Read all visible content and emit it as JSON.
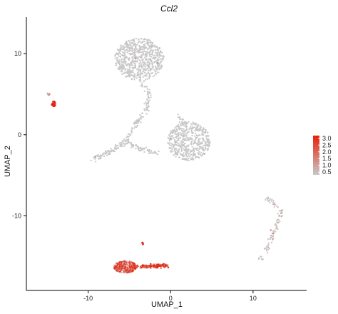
{
  "chart_data": {
    "type": "scatter",
    "title": "Ccl2",
    "xlabel": "UMAP_1",
    "ylabel": "UMAP_2",
    "xlim": [
      -17.5,
      16.5
    ],
    "ylim": [
      -19.2,
      14.5
    ],
    "x_ticks": [
      -10,
      0,
      10
    ],
    "y_ticks": [
      -10,
      0,
      10
    ],
    "grid": false,
    "legend_position": "right",
    "color_scale": {
      "low_color": "#c8c8c8",
      "high_color": "#e8200a",
      "min": 0.3,
      "max": 3.2,
      "ticks": [
        "3.0",
        "2.5",
        "2.0",
        "1.5",
        "1.0",
        "0.5"
      ]
    },
    "clusters": [
      {
        "name": "top-cluster",
        "shape": "ellipse",
        "cx": -3.8,
        "cy": 9.3,
        "rx": 3.0,
        "ry": 2.6,
        "n": 700,
        "expr": 0
      },
      {
        "name": "stem",
        "shape": "polyline",
        "points": [
          [
            -3.5,
            6.5
          ],
          [
            -2.5,
            5.0
          ],
          [
            -3.0,
            3.0
          ],
          [
            -4.5,
            1.0
          ],
          [
            -5.5,
            -1.0
          ]
        ],
        "width": 0.35,
        "n": 120,
        "expr": 0
      },
      {
        "name": "left-arm",
        "shape": "polyline",
        "points": [
          [
            -5.5,
            -1.0
          ],
          [
            -7.5,
            -2.2
          ],
          [
            -9.5,
            -3.0
          ]
        ],
        "width": 0.35,
        "n": 90,
        "expr": 0
      },
      {
        "name": "mid-arm",
        "shape": "polyline",
        "points": [
          [
            -5.5,
            -1.0
          ],
          [
            -3.5,
            -1.8
          ],
          [
            -1.5,
            -2.2
          ]
        ],
        "width": 0.3,
        "n": 70,
        "expr": 0
      },
      {
        "name": "right-blob",
        "shape": "ellipse",
        "cx": 2.2,
        "cy": -0.8,
        "rx": 2.6,
        "ry": 2.4,
        "n": 520,
        "expr": 0
      },
      {
        "name": "right-blob-neck",
        "shape": "polyline",
        "points": [
          [
            0.8,
            2.3
          ],
          [
            2.0,
            1.2
          ]
        ],
        "width": 0.3,
        "n": 25,
        "expr": 0
      },
      {
        "name": "far-right-arm",
        "shape": "polyline",
        "points": [
          [
            11.5,
            -7.5
          ],
          [
            13.5,
            -9.5
          ],
          [
            12.5,
            -12.0
          ],
          [
            11.5,
            -14.5
          ]
        ],
        "width": 0.3,
        "n": 90,
        "expr": 0.15
      },
      {
        "name": "far-right-tip",
        "shape": "ellipse",
        "cx": 11.0,
        "cy": -15.2,
        "rx": 0.4,
        "ry": 0.25,
        "n": 10,
        "expr": 0
      },
      {
        "name": "left-small",
        "shape": "ellipse",
        "cx": -14.2,
        "cy": 3.8,
        "rx": 0.25,
        "ry": 0.35,
        "n": 45,
        "expr": 2.8
      },
      {
        "name": "left-small-gray",
        "shape": "ellipse",
        "cx": -14.8,
        "cy": 5.0,
        "rx": 0.2,
        "ry": 0.2,
        "n": 8,
        "expr": 0.6
      },
      {
        "name": "bottom-main",
        "shape": "ellipse",
        "cx": -5.5,
        "cy": -16.3,
        "rx": 1.4,
        "ry": 0.75,
        "n": 320,
        "expr": 1.9
      },
      {
        "name": "bottom-tail",
        "shape": "polyline",
        "points": [
          [
            -4.5,
            -16.3
          ],
          [
            -2.5,
            -16.2
          ],
          [
            -0.5,
            -16.1
          ]
        ],
        "width": 0.25,
        "n": 160,
        "expr": 2.4
      },
      {
        "name": "bottom-small",
        "shape": "ellipse",
        "cx": -3.4,
        "cy": -13.4,
        "rx": 0.12,
        "ry": 0.15,
        "n": 8,
        "expr": 2.9
      }
    ]
  }
}
